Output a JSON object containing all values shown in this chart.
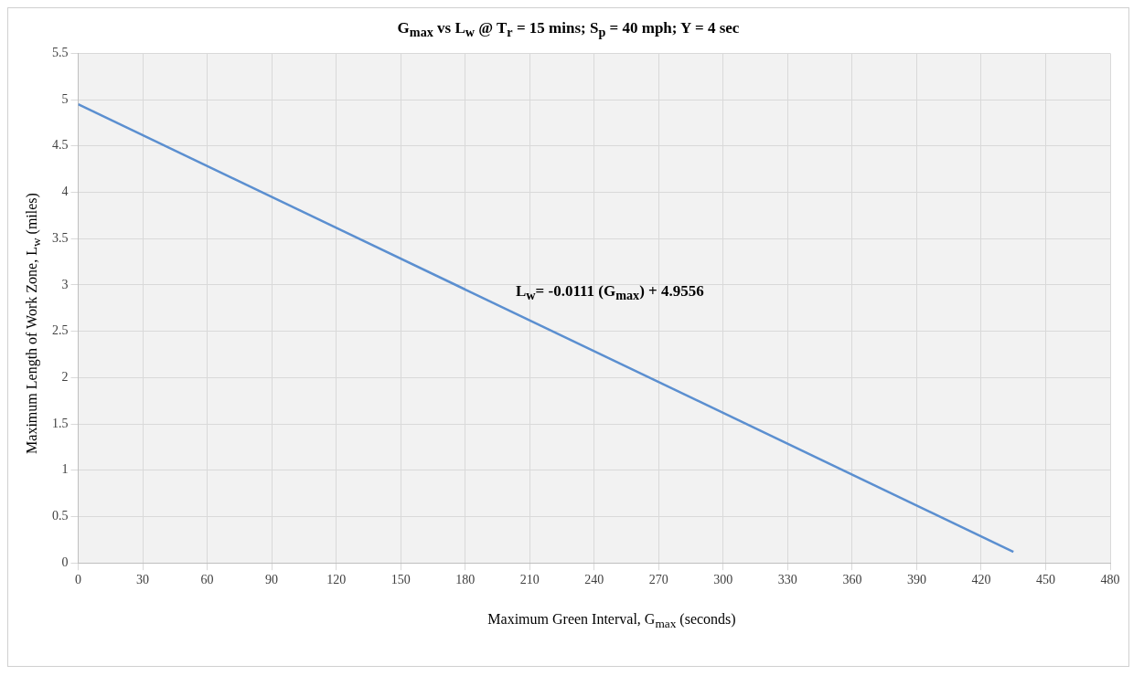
{
  "chart_data": {
    "type": "line",
    "title": "G$_{max}$ vs L$_{w}$ @ T$_{r}$ = 15 mins; S$_{p}$ = 40 mph; Y = 4 sec",
    "xlabel": "Maximum Green Interval, G$_{max}$ (seconds)",
    "ylabel": "Maximum Length of Work Zone, L$_{w}$ (miles)",
    "annotations": [
      "L$_{w}$= -0.0111 (G$_{max}$) + 4.9556"
    ],
    "series": [
      {
        "color": "#5b8fd0",
        "x": [
          0,
          435
        ],
        "values": [
          4.95,
          0.12
        ]
      }
    ],
    "xlim": [
      0,
      480
    ],
    "xticks": [
      0,
      30,
      60,
      90,
      120,
      150,
      180,
      210,
      240,
      270,
      300,
      330,
      360,
      390,
      420,
      450,
      480
    ],
    "ylim": [
      0,
      5.5
    ],
    "yticks": [
      0,
      0.5,
      1,
      1.5,
      2,
      2.5,
      3,
      3.5,
      4,
      4.5,
      5,
      5.5
    ],
    "grid": true,
    "legend": false,
    "marker": "none",
    "line_style": "solid"
  }
}
